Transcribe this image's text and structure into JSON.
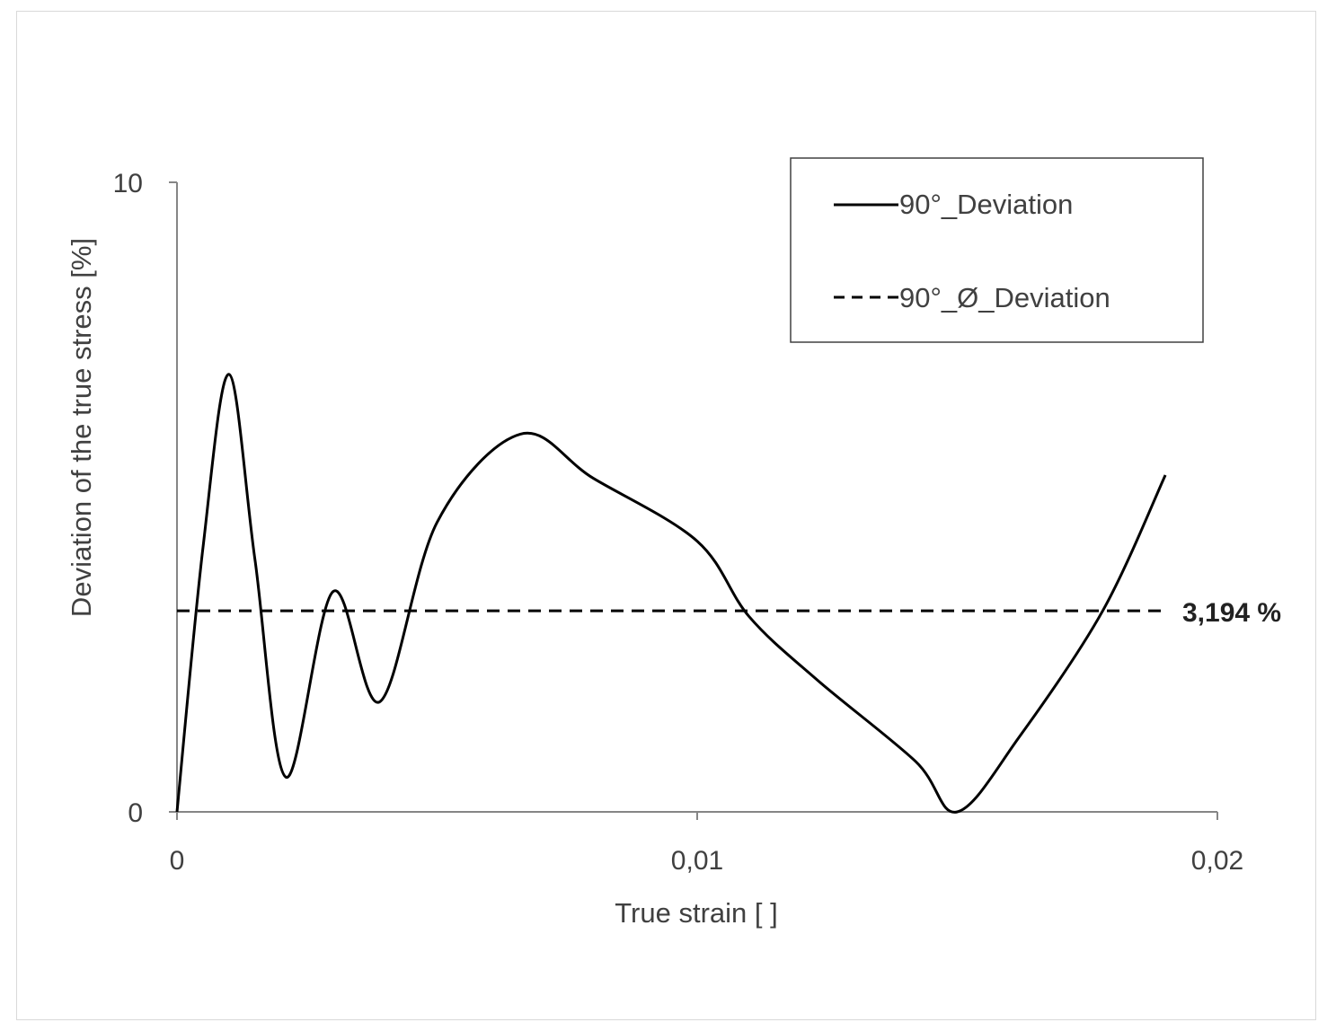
{
  "chart_data": {
    "type": "line",
    "xlabel": "True strain [ ]",
    "ylabel": "Deviation of the true stress [%]",
    "xlim": [
      0,
      0.02
    ],
    "ylim": [
      0,
      10
    ],
    "x_ticks": [
      "0",
      "0,01",
      "0,02"
    ],
    "y_ticks": [
      "0",
      "10"
    ],
    "grid": false,
    "legend_position": "top-right",
    "series": [
      {
        "name": "90°_Deviation",
        "style": "solid",
        "color": "#000000",
        "x": [
          0,
          0.0005,
          0.001,
          0.0015,
          0.0021,
          0.003,
          0.0039,
          0.005,
          0.0066,
          0.008,
          0.01,
          0.011,
          0.0123,
          0.0142,
          0.015,
          0.0162,
          0.0178,
          0.019
        ],
        "y": [
          0,
          4.2,
          6.95,
          4.0,
          0.55,
          3.5,
          1.75,
          4.6,
          6.0,
          5.3,
          4.3,
          3.1,
          2.1,
          0.8,
          0,
          1.2,
          3.2,
          5.35
        ]
      },
      {
        "name": "90°_Ø_Deviation",
        "style": "dashed",
        "color": "#000000",
        "x": [
          0,
          0.019
        ],
        "y": [
          3.194,
          3.194
        ]
      }
    ],
    "annotations": [
      {
        "text": "3,194 %",
        "x": 0.019,
        "y": 3.194
      }
    ]
  }
}
